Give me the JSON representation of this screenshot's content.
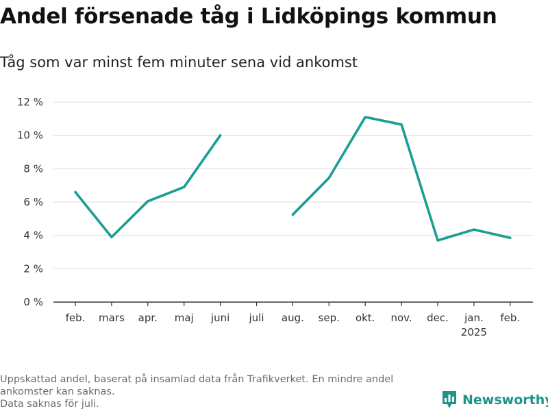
{
  "header": {
    "title": "Andel försenade tåg i Lidköpings kommun",
    "subtitle": "Tåg som var minst fem minuter sena vid ankomst"
  },
  "footnote": {
    "line1": "Uppskattad andel, baserat på insamlad data från Trafikverket. En mindre andel",
    "line2": "ankomster kan saknas.",
    "line3": "Data saknas för juli."
  },
  "brand": {
    "name": "Newsworthy",
    "icon": "bar-chart-logo-icon"
  },
  "colors": {
    "line": "#1a9e94",
    "grid": "#dddddd",
    "axis": "#333333",
    "brand": "#1f9488"
  },
  "chart_data": {
    "type": "line",
    "title": "Andel försenade tåg i Lidköpings kommun",
    "subtitle": "Tåg som var minst fem minuter sena vid ankomst",
    "categories": [
      "feb.",
      "mars",
      "apr.",
      "maj",
      "juni",
      "juli",
      "aug.",
      "sep.",
      "okt.",
      "nov.",
      "dec.",
      "jan.",
      "feb."
    ],
    "category_sublabels": [
      "",
      "",
      "",
      "",
      "",
      "",
      "",
      "",
      "",
      "",
      "",
      "2025",
      ""
    ],
    "series": [
      {
        "values": [
          6.6,
          3.9,
          6.05,
          6.9,
          10.0,
          null,
          5.25,
          7.45,
          11.1,
          10.65,
          3.7,
          4.35,
          3.85
        ]
      }
    ],
    "ylim": [
      0,
      12
    ],
    "yticks": [
      0,
      2,
      4,
      6,
      8,
      10,
      12
    ],
    "ytick_labels": [
      "0 %",
      "2 %",
      "4 %",
      "6 %",
      "8 %",
      "10 %",
      "12 %"
    ],
    "xlabel": "",
    "ylabel": "",
    "grid": "horizontal"
  }
}
